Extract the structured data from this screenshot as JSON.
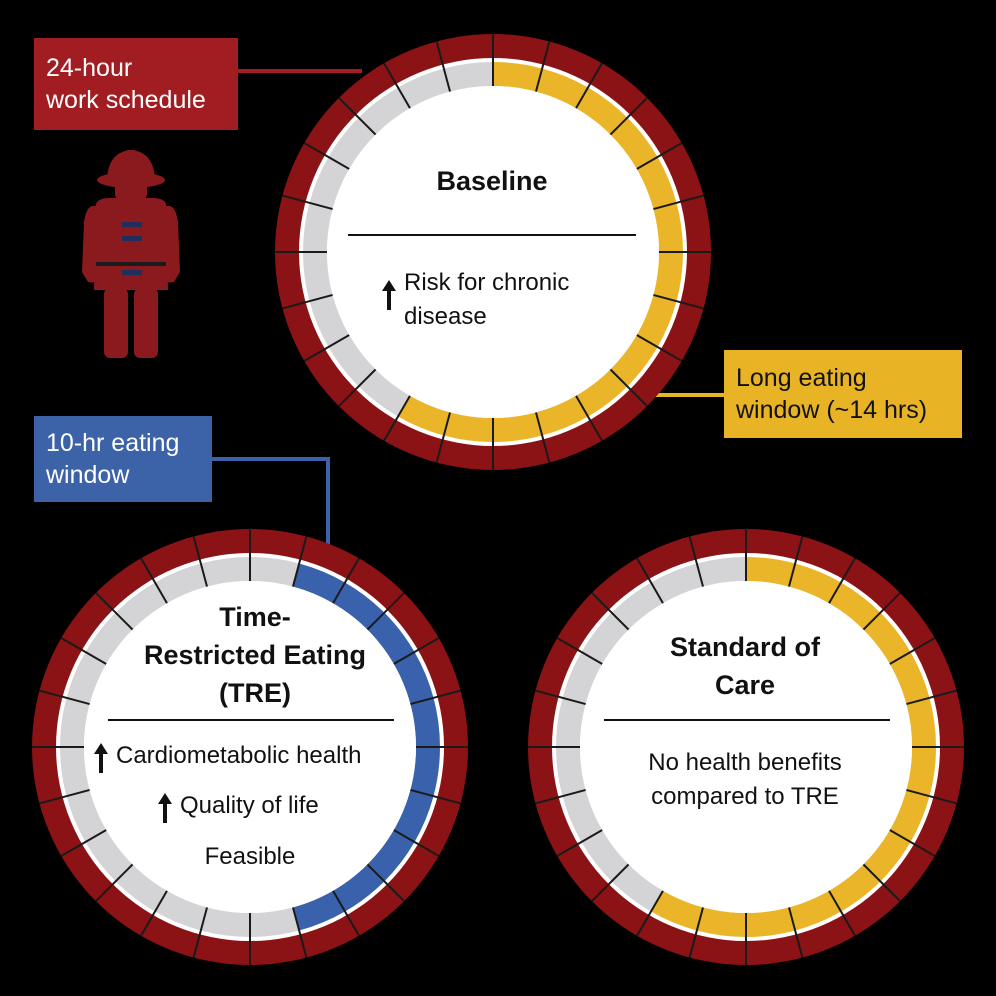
{
  "colors": {
    "background": "#000000",
    "rim_red": "#8b1215",
    "inner_white": "#ffffff",
    "gray_segment": "#d4d4d6",
    "yellow_segment": "#eab529",
    "blue_segment": "#3a61ab",
    "label_red": "#a11d21",
    "label_yellow": "#e8b426",
    "label_blue": "#3c62a8",
    "firefighter_red": "#8b1a1f"
  },
  "labels": {
    "schedule": {
      "line1": "24-hour",
      "line2": "work schedule"
    },
    "tre_window": {
      "line1": "10-hr eating",
      "line2": "window"
    },
    "long_window": {
      "line1": "Long eating",
      "line2": "window (~14 hrs)"
    }
  },
  "clocks": {
    "baseline": {
      "title": "Baseline",
      "effects": [
        {
          "arrow": true,
          "text": "Risk for chronic disease"
        }
      ],
      "segments": 24,
      "eating_start_segment": 0,
      "eating_segment_count": 14,
      "eating_color": "yellow"
    },
    "tre": {
      "title_line1": "Time-",
      "title_line2": "Restricted Eating",
      "title_line3": "(TRE)",
      "effects": [
        {
          "arrow": true,
          "text": "Cardiometabolic health"
        },
        {
          "arrow": true,
          "text": "Quality of life"
        },
        {
          "arrow": false,
          "text": "Feasible"
        }
      ],
      "segments": 24,
      "eating_start_segment": 1,
      "eating_segment_count": 10,
      "eating_color": "blue"
    },
    "standard": {
      "title_line1": "Standard of",
      "title_line2": "Care",
      "effects": [
        {
          "arrow": false,
          "text": "No health benefits compared to TRE"
        }
      ],
      "segments": 24,
      "eating_start_segment": 0,
      "eating_segment_count": 14,
      "eating_color": "yellow"
    }
  },
  "icons": {
    "firefighter": "firefighter-icon"
  }
}
